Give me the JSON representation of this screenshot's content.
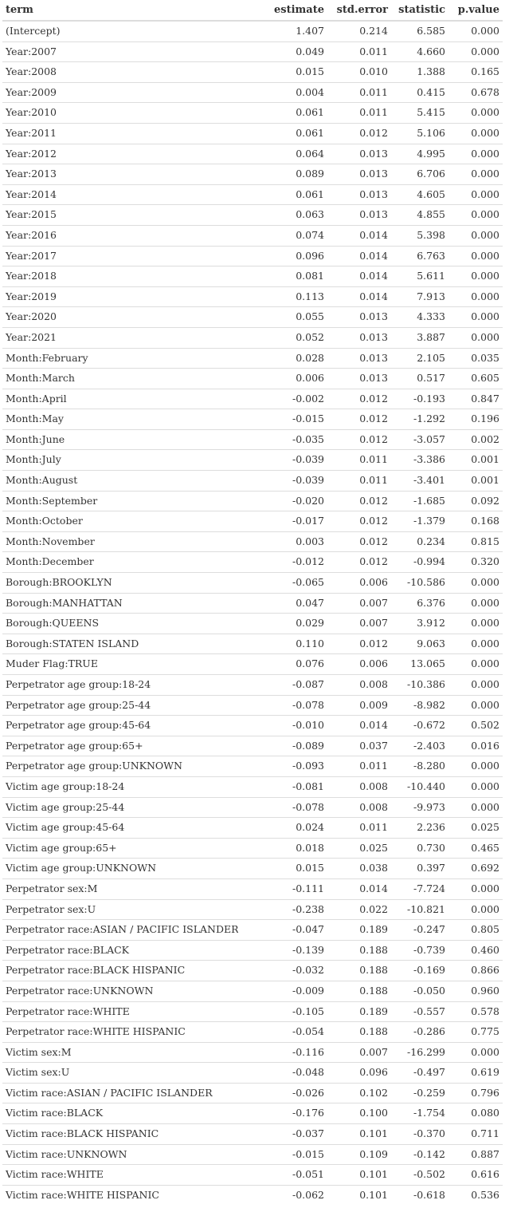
{
  "columns": [
    "term",
    "estimate",
    "std.error",
    "statistic",
    "p.value"
  ],
  "rows": [
    [
      "(Intercept)",
      "1.407",
      "0.214",
      "6.585",
      "0.000"
    ],
    [
      "Year:2007",
      "0.049",
      "0.011",
      "4.660",
      "0.000"
    ],
    [
      "Year:2008",
      "0.015",
      "0.010",
      "1.388",
      "0.165"
    ],
    [
      "Year:2009",
      "0.004",
      "0.011",
      "0.415",
      "0.678"
    ],
    [
      "Year:2010",
      "0.061",
      "0.011",
      "5.415",
      "0.000"
    ],
    [
      "Year:2011",
      "0.061",
      "0.012",
      "5.106",
      "0.000"
    ],
    [
      "Year:2012",
      "0.064",
      "0.013",
      "4.995",
      "0.000"
    ],
    [
      "Year:2013",
      "0.089",
      "0.013",
      "6.706",
      "0.000"
    ],
    [
      "Year:2014",
      "0.061",
      "0.013",
      "4.605",
      "0.000"
    ],
    [
      "Year:2015",
      "0.063",
      "0.013",
      "4.855",
      "0.000"
    ],
    [
      "Year:2016",
      "0.074",
      "0.014",
      "5.398",
      "0.000"
    ],
    [
      "Year:2017",
      "0.096",
      "0.014",
      "6.763",
      "0.000"
    ],
    [
      "Year:2018",
      "0.081",
      "0.014",
      "5.611",
      "0.000"
    ],
    [
      "Year:2019",
      "0.113",
      "0.014",
      "7.913",
      "0.000"
    ],
    [
      "Year:2020",
      "0.055",
      "0.013",
      "4.333",
      "0.000"
    ],
    [
      "Year:2021",
      "0.052",
      "0.013",
      "3.887",
      "0.000"
    ],
    [
      "Month:February",
      "0.028",
      "0.013",
      "2.105",
      "0.035"
    ],
    [
      "Month:March",
      "0.006",
      "0.013",
      "0.517",
      "0.605"
    ],
    [
      "Month:April",
      "-0.002",
      "0.012",
      "-0.193",
      "0.847"
    ],
    [
      "Month:May",
      "-0.015",
      "0.012",
      "-1.292",
      "0.196"
    ],
    [
      "Month:June",
      "-0.035",
      "0.012",
      "-3.057",
      "0.002"
    ],
    [
      "Month:July",
      "-0.039",
      "0.011",
      "-3.386",
      "0.001"
    ],
    [
      "Month:August",
      "-0.039",
      "0.011",
      "-3.401",
      "0.001"
    ],
    [
      "Month:September",
      "-0.020",
      "0.012",
      "-1.685",
      "0.092"
    ],
    [
      "Month:October",
      "-0.017",
      "0.012",
      "-1.379",
      "0.168"
    ],
    [
      "Month:November",
      "0.003",
      "0.012",
      "0.234",
      "0.815"
    ],
    [
      "Month:December",
      "-0.012",
      "0.012",
      "-0.994",
      "0.320"
    ],
    [
      "Borough:BROOKLYN",
      "-0.065",
      "0.006",
      "-10.586",
      "0.000"
    ],
    [
      "Borough:MANHATTAN",
      "0.047",
      "0.007",
      "6.376",
      "0.000"
    ],
    [
      "Borough:QUEENS",
      "0.029",
      "0.007",
      "3.912",
      "0.000"
    ],
    [
      "Borough:STATEN ISLAND",
      "0.110",
      "0.012",
      "9.063",
      "0.000"
    ],
    [
      "Muder Flag:TRUE",
      "0.076",
      "0.006",
      "13.065",
      "0.000"
    ],
    [
      "Perpetrator age group:18-24",
      "-0.087",
      "0.008",
      "-10.386",
      "0.000"
    ],
    [
      "Perpetrator age group:25-44",
      "-0.078",
      "0.009",
      "-8.982",
      "0.000"
    ],
    [
      "Perpetrator age group:45-64",
      "-0.010",
      "0.014",
      "-0.672",
      "0.502"
    ],
    [
      "Perpetrator age group:65+",
      "-0.089",
      "0.037",
      "-2.403",
      "0.016"
    ],
    [
      "Perpetrator age group:UNKNOWN",
      "-0.093",
      "0.011",
      "-8.280",
      "0.000"
    ],
    [
      "Victim age group:18-24",
      "-0.081",
      "0.008",
      "-10.440",
      "0.000"
    ],
    [
      "Victim age group:25-44",
      "-0.078",
      "0.008",
      "-9.973",
      "0.000"
    ],
    [
      "Victim age group:45-64",
      "0.024",
      "0.011",
      "2.236",
      "0.025"
    ],
    [
      "Victim age group:65+",
      "0.018",
      "0.025",
      "0.730",
      "0.465"
    ],
    [
      "Victim age group:UNKNOWN",
      "0.015",
      "0.038",
      "0.397",
      "0.692"
    ],
    [
      "Perpetrator sex:M",
      "-0.111",
      "0.014",
      "-7.724",
      "0.000"
    ],
    [
      "Perpetrator sex:U",
      "-0.238",
      "0.022",
      "-10.821",
      "0.000"
    ],
    [
      "Perpetrator race:ASIAN / PACIFIC ISLANDER",
      "-0.047",
      "0.189",
      "-0.247",
      "0.805"
    ],
    [
      "Perpetrator race:BLACK",
      "-0.139",
      "0.188",
      "-0.739",
      "0.460"
    ],
    [
      "Perpetrator race:BLACK HISPANIC",
      "-0.032",
      "0.188",
      "-0.169",
      "0.866"
    ],
    [
      "Perpetrator race:UNKNOWN",
      "-0.009",
      "0.188",
      "-0.050",
      "0.960"
    ],
    [
      "Perpetrator race:WHITE",
      "-0.105",
      "0.189",
      "-0.557",
      "0.578"
    ],
    [
      "Perpetrator race:WHITE HISPANIC",
      "-0.054",
      "0.188",
      "-0.286",
      "0.775"
    ],
    [
      "Victim sex:M",
      "-0.116",
      "0.007",
      "-16.299",
      "0.000"
    ],
    [
      "Victim sex:U",
      "-0.048",
      "0.096",
      "-0.497",
      "0.619"
    ],
    [
      "Victim race:ASIAN / PACIFIC ISLANDER",
      "-0.026",
      "0.102",
      "-0.259",
      "0.796"
    ],
    [
      "Victim race:BLACK",
      "-0.176",
      "0.100",
      "-1.754",
      "0.080"
    ],
    [
      "Victim race:BLACK HISPANIC",
      "-0.037",
      "0.101",
      "-0.370",
      "0.711"
    ],
    [
      "Victim race:UNKNOWN",
      "-0.015",
      "0.109",
      "-0.142",
      "0.887"
    ],
    [
      "Victim race:WHITE",
      "-0.051",
      "0.101",
      "-0.502",
      "0.616"
    ],
    [
      "Victim race:WHITE HISPANIC",
      "-0.062",
      "0.101",
      "-0.618",
      "0.536"
    ]
  ]
}
